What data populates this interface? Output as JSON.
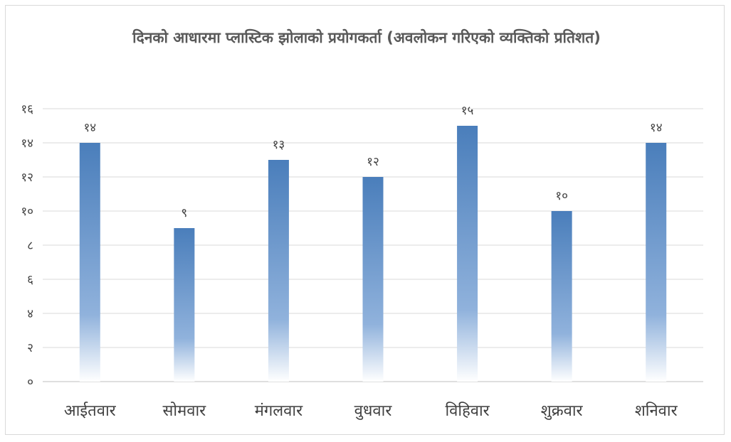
{
  "chart_data": {
    "type": "bar",
    "title": "दिनको आधारमा प्लास्टिक झोलाको प्रयोगकर्ता (अवलोकन गरिएको व्यक्तिको प्रतिशत)",
    "categories": [
      "आईतवार",
      "सोमवार",
      "मंगलवार",
      "वुधवार",
      "विहिवार",
      "शुक्रवार",
      "शनिवार"
    ],
    "values": [
      14,
      9,
      13,
      12,
      15,
      10,
      14
    ],
    "data_labels": [
      "१४",
      "९",
      "१३",
      "१२",
      "१५",
      "१०",
      "१४"
    ],
    "y_ticks": [
      {
        "value": 0,
        "label": "०"
      },
      {
        "value": 2,
        "label": "२"
      },
      {
        "value": 4,
        "label": "४"
      },
      {
        "value": 6,
        "label": "६"
      },
      {
        "value": 8,
        "label": "८"
      },
      {
        "value": 10,
        "label": "१०"
      },
      {
        "value": 12,
        "label": "१२"
      },
      {
        "value": 14,
        "label": "१४"
      },
      {
        "value": 16,
        "label": "१६"
      }
    ],
    "ylim": [
      0,
      16
    ],
    "grid": true,
    "legend": "none",
    "colors": {
      "bar_top": "#4a7ebb",
      "bar_bottom": "#ffffff",
      "grid": "#d9d9d9",
      "axis": "#bfbfbf"
    }
  }
}
